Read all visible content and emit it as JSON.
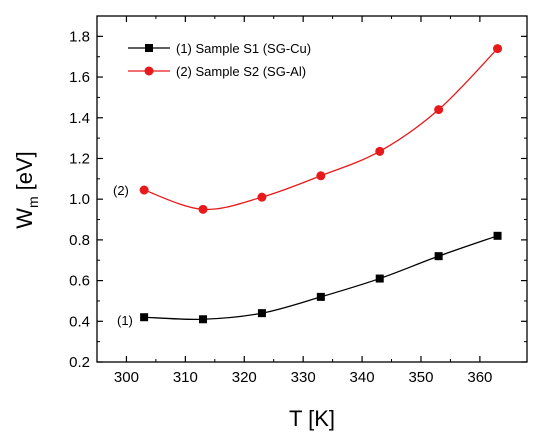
{
  "chart_data": {
    "type": "line",
    "xlabel": "T [K]",
    "ylabel_main": "W",
    "ylabel_sub": "m",
    "ylabel_unit": "[eV]",
    "xlim": [
      295,
      368
    ],
    "ylim": [
      0.2,
      1.9
    ],
    "x_ticks": [
      300,
      310,
      320,
      330,
      340,
      350,
      360
    ],
    "y_ticks": [
      0.2,
      0.4,
      0.6,
      0.8,
      1.0,
      1.2,
      1.4,
      1.6,
      1.8
    ],
    "x_tick_labels": [
      "300",
      "310",
      "320",
      "330",
      "340",
      "350",
      "360"
    ],
    "y_tick_labels": [
      "0.2",
      "0.4",
      "0.6",
      "0.8",
      "1.0",
      "1.2",
      "1.4",
      "1.6",
      "1.8"
    ],
    "legend_position": "top-left",
    "grid": false,
    "series": [
      {
        "name": "(1) Sample S1 (SG-Cu)",
        "annotation": "(1)",
        "color": "#000000",
        "marker": "square",
        "x": [
          303,
          313,
          323,
          333,
          343,
          353,
          363
        ],
        "y": [
          0.42,
          0.41,
          0.44,
          0.52,
          0.61,
          0.72,
          0.82
        ]
      },
      {
        "name": "(2) Sample S2 (SG-Al)",
        "annotation": "(2)",
        "color": "#e8191a",
        "marker": "circle",
        "x": [
          303,
          313,
          323,
          333,
          343,
          353,
          363
        ],
        "y": [
          1.045,
          0.95,
          1.01,
          1.115,
          1.235,
          1.44,
          1.74
        ]
      }
    ]
  }
}
